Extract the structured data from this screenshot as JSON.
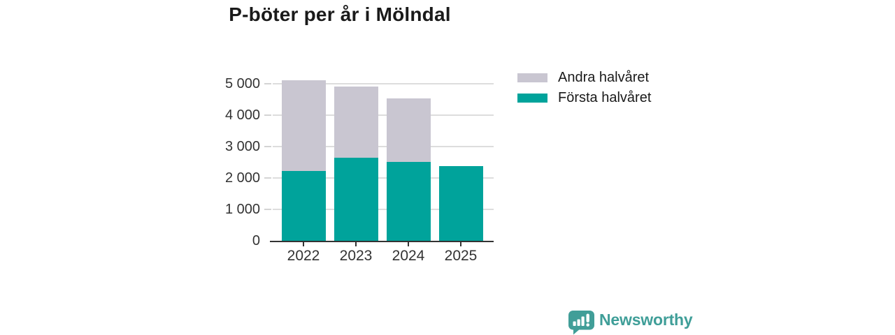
{
  "chart_data": {
    "type": "bar",
    "stacked": true,
    "title": "P-böter per år i Mölndal",
    "categories": [
      "2022",
      "2023",
      "2024",
      "2025"
    ],
    "series": [
      {
        "name": "Första halvåret",
        "color": "#00A39B",
        "values": [
          2230,
          2650,
          2510,
          2390
        ]
      },
      {
        "name": "Andra halvåret",
        "color": "#C9C6D1",
        "values": [
          2900,
          2270,
          2040,
          0
        ]
      }
    ],
    "totals": [
      5130,
      4920,
      4550,
      2390
    ],
    "xlabel": "",
    "ylabel": "",
    "ylim": [
      0,
      5500
    ],
    "yticks": [
      0,
      1000,
      2000,
      3000,
      4000,
      5000
    ],
    "ytick_labels": [
      "0",
      "1 000",
      "2 000",
      "3 000",
      "4 000",
      "5 000"
    ],
    "grid": true,
    "legend_position": "top-right",
    "legend_order": "reverse-of-stack"
  },
  "brand": {
    "name": "Newsworthy",
    "color": "#3F9E98",
    "icon": "newsworthy-logo-icon"
  },
  "colors": {
    "background": "#FFFFFF",
    "axis_line": "#333333",
    "gridline": "#DDDDDD",
    "axis_text": "#333333",
    "title_text": "#1A1A1A",
    "legend_text": "#1A1A1A"
  }
}
